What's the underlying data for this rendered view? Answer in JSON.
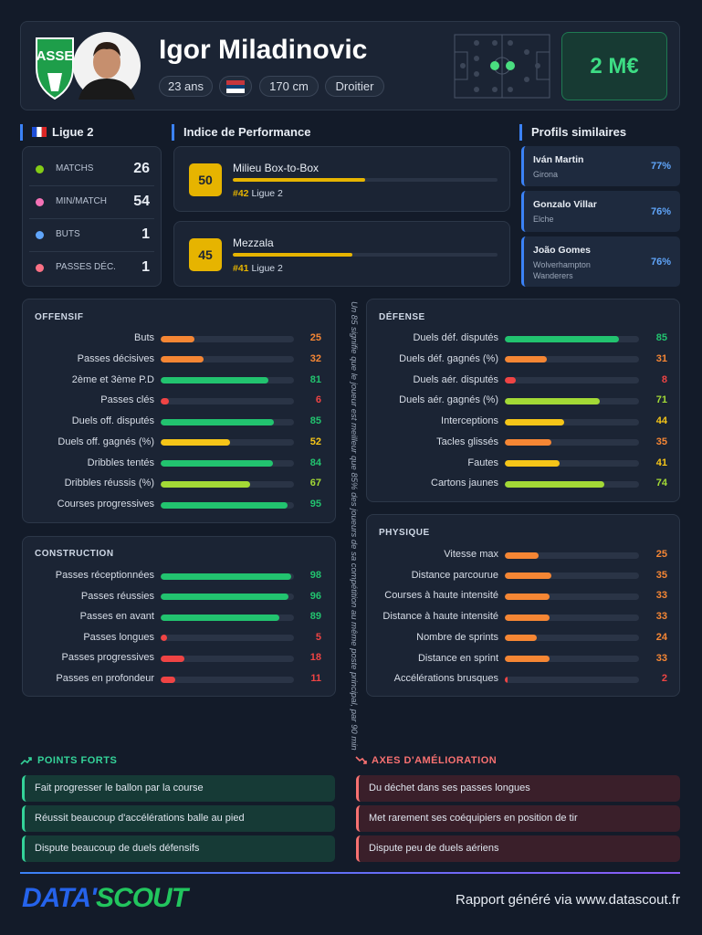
{
  "header": {
    "name": "Igor Miladinovic",
    "age": "23 ans",
    "height": "170 cm",
    "foot": "Droitier",
    "market_value": "2 M€"
  },
  "league": {
    "title": "Ligue 2",
    "stats": [
      {
        "label": "MATCHS",
        "value": 26
      },
      {
        "label": "MIN/MATCH",
        "value": 54
      },
      {
        "label": "BUTS",
        "value": 1
      },
      {
        "label": "PASSES DÉC.",
        "value": 1
      }
    ]
  },
  "performance": {
    "title": "Indice de Performance",
    "xlim": [
      0,
      100
    ],
    "profiles": [
      {
        "score": 50,
        "label": "Milieu Box-to-Box",
        "rank": "#42",
        "league": "Ligue 2"
      },
      {
        "score": 45,
        "label": "Mezzala",
        "rank": "#41",
        "league": "Ligue 2"
      }
    ]
  },
  "similar": {
    "title": "Profils similaires",
    "players": [
      {
        "name": "Iván Martin",
        "club": "Girona",
        "similarity": "77%"
      },
      {
        "name": "Gonzalo Villar",
        "club": "Elche",
        "similarity": "76%"
      },
      {
        "name": "João Gomes",
        "club": "Wolverhampton Wanderers",
        "similarity": "76%"
      }
    ]
  },
  "percentiles": {
    "xlim": [
      0,
      100
    ],
    "note": "Un 85 signifie que le joueur est meilleur que 85% des joueurs de sa compétition au même poste principal, par 90 min",
    "sections": [
      {
        "title": "OFFENSIF",
        "rows": [
          {
            "label": "Buts",
            "value": 25
          },
          {
            "label": "Passes décisives",
            "value": 32
          },
          {
            "label": "2ème et 3ème P.D",
            "value": 81
          },
          {
            "label": "Passes clés",
            "value": 6
          },
          {
            "label": "Duels off. disputés",
            "value": 85
          },
          {
            "label": "Duels off. gagnés (%)",
            "value": 52
          },
          {
            "label": "Dribbles tentés",
            "value": 84
          },
          {
            "label": "Dribbles réussis (%)",
            "value": 67
          },
          {
            "label": "Courses progressives",
            "value": 95
          }
        ]
      },
      {
        "title": "CONSTRUCTION",
        "rows": [
          {
            "label": "Passes réceptionnées",
            "value": 98
          },
          {
            "label": "Passes réussies",
            "value": 96
          },
          {
            "label": "Passes en avant",
            "value": 89
          },
          {
            "label": "Passes longues",
            "value": 5
          },
          {
            "label": "Passes progressives",
            "value": 18
          },
          {
            "label": "Passes en profondeur",
            "value": 11
          }
        ]
      },
      {
        "title": "DÉFENSE",
        "rows": [
          {
            "label": "Duels déf. disputés",
            "value": 85
          },
          {
            "label": "Duels déf. gagnés (%)",
            "value": 31
          },
          {
            "label": "Duels aér. disputés",
            "value": 8
          },
          {
            "label": "Duels aér. gagnés (%)",
            "value": 71
          },
          {
            "label": "Interceptions",
            "value": 44
          },
          {
            "label": "Tacles glissés",
            "value": 35
          },
          {
            "label": "Fautes",
            "value": 41
          },
          {
            "label": "Cartons jaunes",
            "value": 74
          }
        ]
      },
      {
        "title": "PHYSIQUE",
        "rows": [
          {
            "label": "Vitesse max",
            "value": 25
          },
          {
            "label": "Distance parcourue",
            "value": 35
          },
          {
            "label": "Courses à haute intensité",
            "value": 33
          },
          {
            "label": "Distance à haute intensité",
            "value": 33
          },
          {
            "label": "Nombre de sprints",
            "value": 24
          },
          {
            "label": "Distance en sprint",
            "value": 33
          },
          {
            "label": "Accélérations brusques",
            "value": 2
          }
        ]
      }
    ]
  },
  "strengths": {
    "title": "POINTS FORTS",
    "items": [
      "Fait progresser le ballon par la course",
      "Réussit beaucoup d'accélérations balle au pied",
      "Dispute beaucoup de duels défensifs"
    ]
  },
  "improvements": {
    "title": "AXES D'AMÉLIORATION",
    "items": [
      "Du déchet dans ses passes longues",
      "Met rarement ses coéquipiers en position de tir",
      "Dispute peu de duels aériens"
    ]
  },
  "footer": {
    "logo_left": "DATA'",
    "logo_right": "SCOUT",
    "credit": "Rapport généré via www.datascout.fr"
  }
}
